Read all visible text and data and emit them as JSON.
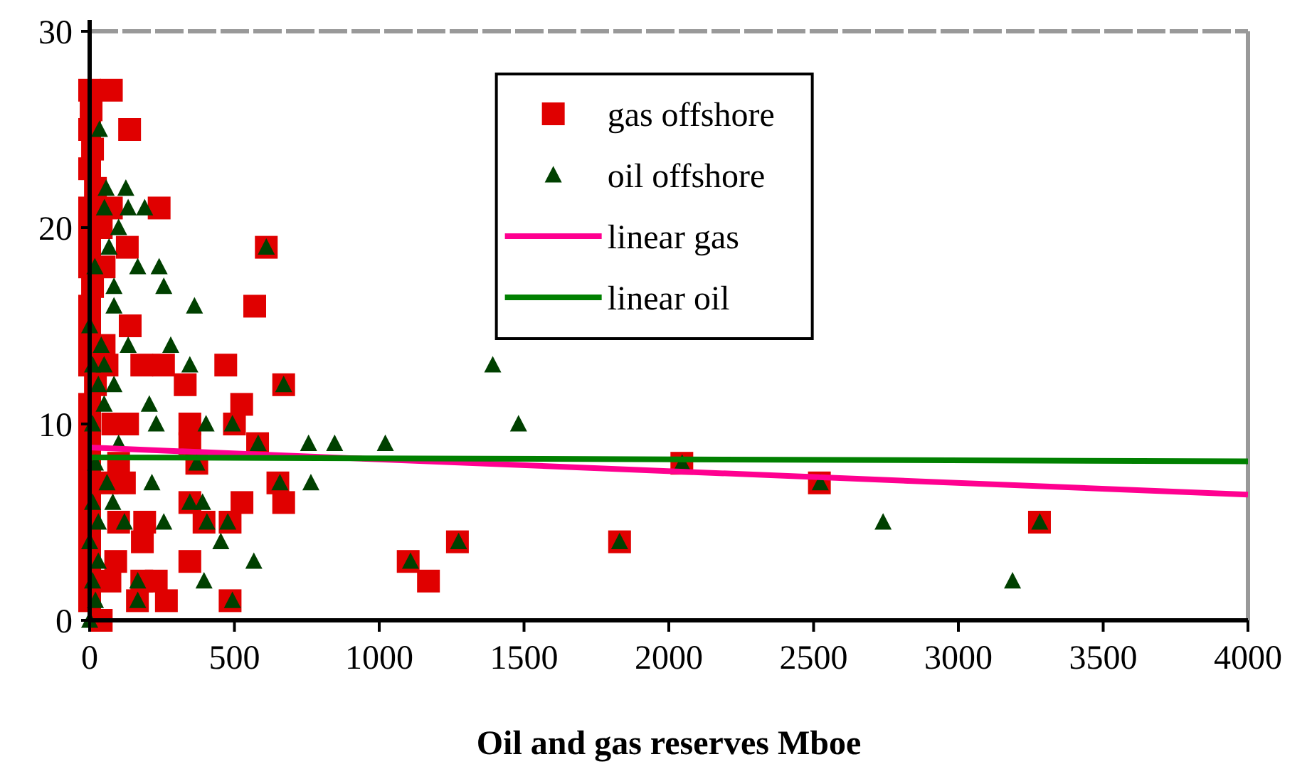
{
  "chart_data": {
    "type": "scatter",
    "xlabel": "Oil and gas reserves Mboe",
    "xlim": [
      0,
      4000
    ],
    "ylim": [
      0,
      30
    ],
    "xticks": [
      0,
      500,
      1000,
      1500,
      2000,
      2500,
      3000,
      3500,
      4000
    ],
    "yticks": [
      0,
      10,
      20,
      30
    ],
    "grid": false,
    "legend": "top",
    "series": [
      {
        "name": "gas offshore",
        "marker": "square",
        "color": "#e00000",
        "x": [
          0,
          75,
          5,
          0,
          138,
          10,
          0,
          20,
          0,
          75,
          240,
          0,
          40,
          0,
          130,
          610,
          0,
          50,
          10,
          0,
          570,
          0,
          140,
          0,
          50,
          0,
          180,
          255,
          470,
          60,
          330,
          670,
          20,
          525,
          0,
          0,
          131,
          346,
          500,
          80,
          346,
          580,
          0,
          370,
          0,
          100,
          650,
          0,
          60,
          670,
          346,
          526,
          0,
          190,
          395,
          485,
          0,
          182,
          0,
          346,
          1100,
          0,
          180,
          230,
          1170,
          0,
          70,
          165,
          265,
          485,
          0,
          40,
          1270,
          1830,
          2045,
          2520,
          3280,
          100,
          120,
          90
        ],
        "values": [
          27,
          27,
          26,
          25,
          25,
          24,
          23,
          22,
          21,
          21,
          21,
          20,
          20,
          19,
          19,
          19,
          18,
          18,
          17,
          16,
          16,
          15,
          15,
          14,
          14,
          13,
          13,
          13,
          13,
          13,
          12,
          12,
          12,
          11,
          11,
          10,
          10,
          10,
          10,
          10,
          9,
          9,
          9,
          8,
          8,
          8,
          7,
          7,
          7,
          6,
          6,
          6,
          6,
          5,
          5,
          5,
          5,
          4,
          4,
          3,
          3,
          3,
          2,
          2,
          2,
          2,
          2,
          1,
          1,
          1,
          1,
          0,
          4,
          4,
          8,
          7,
          5,
          5,
          7,
          3
        ]
      },
      {
        "name": "oil offshore",
        "marker": "triangle",
        "color": "#004000",
        "x": [
          34,
          57,
          125,
          51,
          133,
          190,
          100,
          67,
          18,
          166,
          240,
          84,
          256,
          362,
          84,
          0,
          133,
          280,
          40,
          346,
          50,
          10,
          30,
          84,
          610,
          206,
          50,
          493,
          402,
          230,
          10,
          582,
          756,
          846,
          1021,
          370,
          20,
          657,
          764,
          215,
          60,
          346,
          390,
          10,
          80,
          256,
          405,
          477,
          30,
          453,
          0,
          567,
          1108,
          30,
          166,
          395,
          10,
          166,
          493,
          0,
          20,
          1392,
          1481,
          2740,
          3187,
          1274,
          1830,
          2046,
          2523,
          3281,
          670,
          100,
          120
        ],
        "values": [
          25,
          22,
          22,
          21,
          21,
          21,
          20,
          19,
          18,
          18,
          18,
          17,
          17,
          16,
          16,
          15,
          14,
          14,
          14,
          13,
          13,
          13,
          12,
          12,
          19,
          11,
          11,
          10,
          10,
          10,
          10,
          9,
          9,
          9,
          9,
          8,
          8,
          7,
          7,
          7,
          7,
          6,
          6,
          6,
          6,
          5,
          5,
          5,
          5,
          4,
          4,
          3,
          3,
          3,
          2,
          2,
          2,
          1,
          1,
          0,
          1,
          13,
          10,
          5,
          2,
          4,
          4,
          8,
          7,
          5,
          12,
          9,
          5
        ]
      },
      {
        "name": "linear gas",
        "type": "line",
        "color": "#ff0090",
        "x": [
          0,
          4000
        ],
        "values": [
          8.8,
          6.4
        ]
      },
      {
        "name": "linear oil",
        "type": "line",
        "color": "#008000",
        "x": [
          0,
          4000
        ],
        "values": [
          8.3,
          8.1
        ]
      }
    ]
  }
}
